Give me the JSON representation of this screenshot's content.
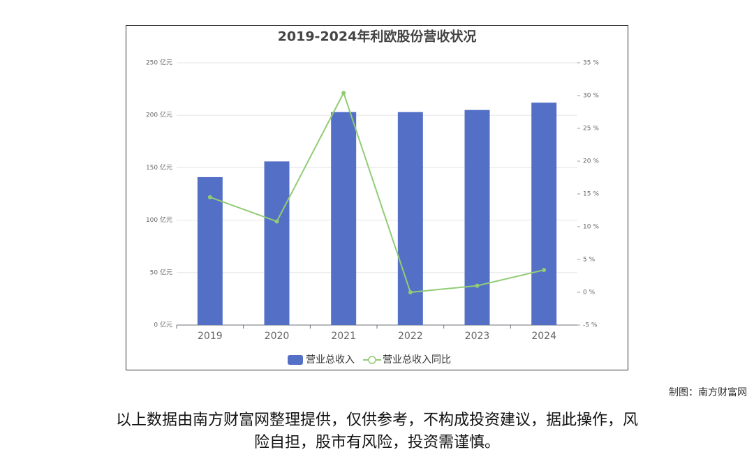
{
  "chart_data": {
    "type": "bar-line",
    "title": "2019-2024年利欧股份营收状况",
    "categories": [
      "2019",
      "2020",
      "2021",
      "2022",
      "2023",
      "2024"
    ],
    "series": [
      {
        "name": "营业总收入",
        "type": "bar",
        "color": "#5470c6",
        "values": [
          141,
          156,
          203,
          203,
          205,
          212
        ]
      },
      {
        "name": "营业总收入同比",
        "type": "line",
        "color": "#91cc75",
        "axis": "y2",
        "values": [
          14.5,
          10.8,
          30.4,
          0.0,
          1.0,
          3.4
        ]
      }
    ],
    "ylim": [
      0,
      250
    ],
    "yticks": [
      {
        "value": 0,
        "label": "0 亿元"
      },
      {
        "value": 50,
        "label": "50 亿元"
      },
      {
        "value": 100,
        "label": "100 亿元"
      },
      {
        "value": 150,
        "label": "150 亿元"
      },
      {
        "value": 200,
        "label": "200 亿元"
      },
      {
        "value": 250,
        "label": "250 亿元"
      }
    ],
    "y2lim": [
      -5,
      35
    ],
    "y2ticks": [
      {
        "value": -5,
        "label": "-5 %"
      },
      {
        "value": 0,
        "label": "0 %"
      },
      {
        "value": 5,
        "label": "5 %"
      },
      {
        "value": 10,
        "label": "10 %"
      },
      {
        "value": 15,
        "label": "15 %"
      },
      {
        "value": 20,
        "label": "20 %"
      },
      {
        "value": 25,
        "label": "25 %"
      },
      {
        "value": 30,
        "label": "30 %"
      },
      {
        "value": 35,
        "label": "35 %"
      }
    ],
    "grid": true,
    "legend": "bottom"
  },
  "footer": {
    "credit": "制图：南方财富网",
    "disclaimer": [
      "以上数据由南方财富网整理提供，仅供参考，不构成投资建议，据此操作，风",
      "险自担，股市有风险，投资需谨慎。"
    ]
  }
}
